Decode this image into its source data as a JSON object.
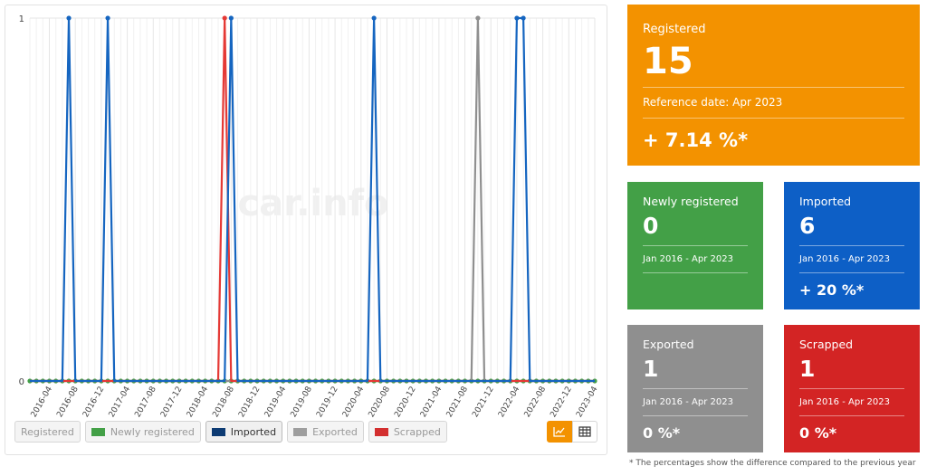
{
  "chart_data": {
    "type": "line",
    "x_start": "2016-01",
    "x_end": "2023-04",
    "x": [
      "2016-01",
      "2016-02",
      "2016-03",
      "2016-04",
      "2016-05",
      "2016-06",
      "2016-07",
      "2016-08",
      "2016-09",
      "2016-10",
      "2016-11",
      "2016-12",
      "2017-01",
      "2017-02",
      "2017-03",
      "2017-04",
      "2017-05",
      "2017-06",
      "2017-07",
      "2017-08",
      "2017-09",
      "2017-10",
      "2017-11",
      "2017-12",
      "2018-01",
      "2018-02",
      "2018-03",
      "2018-04",
      "2018-05",
      "2018-06",
      "2018-07",
      "2018-08",
      "2018-09",
      "2018-10",
      "2018-11",
      "2018-12",
      "2019-01",
      "2019-02",
      "2019-03",
      "2019-04",
      "2019-05",
      "2019-06",
      "2019-07",
      "2019-08",
      "2019-09",
      "2019-10",
      "2019-11",
      "2019-12",
      "2020-01",
      "2020-02",
      "2020-03",
      "2020-04",
      "2020-05",
      "2020-06",
      "2020-07",
      "2020-08",
      "2020-09",
      "2020-10",
      "2020-11",
      "2020-12",
      "2021-01",
      "2021-02",
      "2021-03",
      "2021-04",
      "2021-05",
      "2021-06",
      "2021-07",
      "2021-08",
      "2021-09",
      "2021-10",
      "2021-11",
      "2021-12",
      "2022-01",
      "2022-02",
      "2022-03",
      "2022-04",
      "2022-05",
      "2022-06",
      "2022-07",
      "2022-08",
      "2022-09",
      "2022-10",
      "2022-11",
      "2022-12",
      "2023-01",
      "2023-02",
      "2023-03",
      "2023-04"
    ],
    "tick_labels": [
      "2016-04",
      "2016-08",
      "2016-12",
      "2017-04",
      "2017-08",
      "2017-12",
      "2018-04",
      "2018-08",
      "2018-12",
      "2019-04",
      "2019-08",
      "2019-12",
      "2020-04",
      "2020-08",
      "2020-12",
      "2021-04",
      "2021-08",
      "2021-12",
      "2022-04",
      "2022-08",
      "2022-12",
      "2023-04"
    ],
    "ylim": [
      0,
      1
    ],
    "y_ticks": [
      "0",
      "1"
    ],
    "grid": true,
    "series": [
      {
        "name": "Newly registered",
        "color": "#43a047",
        "nonzero": {}
      },
      {
        "name": "Exported",
        "color": "#8f8f8f",
        "nonzero": {
          "2021-10": 1
        }
      },
      {
        "name": "Scrapped",
        "color": "#e53935",
        "nonzero": {
          "2018-07": 1
        }
      },
      {
        "name": "Imported",
        "color": "#1565c0",
        "nonzero": {
          "2016-07": 1,
          "2017-01": 1,
          "2018-08": 1,
          "2020-06": 1,
          "2022-04": 1,
          "2022-05": 1
        }
      }
    ],
    "watermark": "car.info"
  },
  "legend": [
    {
      "label": "Registered",
      "color": "",
      "active": false,
      "plain": true
    },
    {
      "label": "Newly registered",
      "color": "#43a047",
      "active": false,
      "plain": false
    },
    {
      "label": "Imported",
      "color": "#0d3b73",
      "active": true,
      "plain": false
    },
    {
      "label": "Exported",
      "color": "#9e9e9e",
      "active": false,
      "plain": false
    },
    {
      "label": "Scrapped",
      "color": "#d32f2f",
      "active": false,
      "plain": false
    }
  ],
  "view_toggle": {
    "chart_icon": "line-chart-icon",
    "table_icon": "table-icon",
    "active": "chart"
  },
  "cards": {
    "registered": {
      "label": "Registered",
      "value": "15",
      "reference": "Reference date: Apr 2023",
      "change": "+ 7.14 %*"
    },
    "newly_registered": {
      "label": "Newly registered",
      "value": "0",
      "period": "Jan 2016 - Apr 2023",
      "change": ""
    },
    "imported": {
      "label": "Imported",
      "value": "6",
      "period": "Jan 2016 - Apr 2023",
      "change": "+ 20 %*"
    },
    "exported": {
      "label": "Exported",
      "value": "1",
      "period": "Jan 2016 - Apr 2023",
      "change": "0 %*"
    },
    "scrapped": {
      "label": "Scrapped",
      "value": "1",
      "period": "Jan 2016 - Apr 2023",
      "change": "0 %*"
    }
  },
  "footnote": "* The percentages show the difference compared to the previous year",
  "colors": {
    "orange": "#f39200",
    "green": "#43a047",
    "blue": "#0d5fc6",
    "grey": "#8f8f8f",
    "red": "#d32424"
  }
}
